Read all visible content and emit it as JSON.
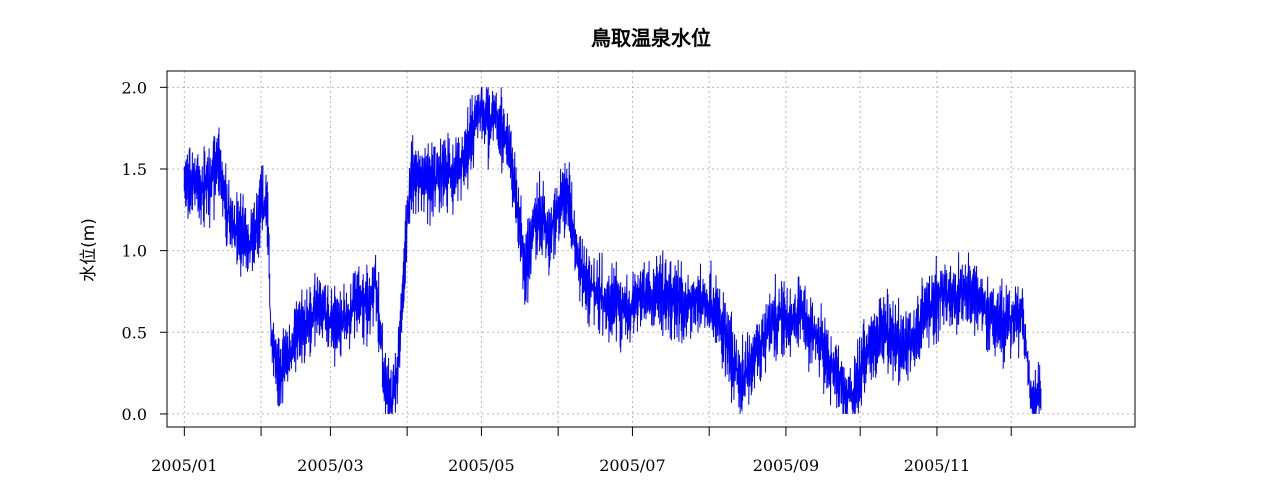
{
  "chart_data": {
    "type": "line",
    "title": "鳥取温泉水位",
    "xlabel": "",
    "ylabel": "水位(m)",
    "x_axis": {
      "type": "date",
      "range": [
        "2004-12-25",
        "2006-01-20"
      ],
      "ticks": [
        "2005-01-01",
        "2005-02-01",
        "2005-03-01",
        "2005-04-01",
        "2005-05-01",
        "2005-06-01",
        "2005-07-01",
        "2005-08-01",
        "2005-09-01",
        "2005-10-01",
        "2005-11-01",
        "2005-12-01"
      ],
      "tick_labels": [
        "2005/01",
        "",
        "2005/03",
        "",
        "2005/05",
        "",
        "2005/07",
        "",
        "2005/09",
        "",
        "2005/11",
        ""
      ]
    },
    "y_axis": {
      "range": [
        -0.08,
        2.1
      ],
      "ticks": [
        0.0,
        0.5,
        1.0,
        1.5,
        2.0
      ],
      "tick_labels": [
        "0.0",
        "0.5",
        "1.0",
        "1.5",
        "2.0"
      ]
    },
    "grid": true,
    "series": [
      {
        "color": "#0000ff",
        "points": [
          [
            "2005-01-01",
            1.4
          ],
          [
            "2005-01-05",
            1.45
          ],
          [
            "2005-01-08",
            1.38
          ],
          [
            "2005-01-12",
            1.42
          ],
          [
            "2005-01-15",
            1.55
          ],
          [
            "2005-01-18",
            1.25
          ],
          [
            "2005-01-21",
            1.15
          ],
          [
            "2005-01-25",
            1.1
          ],
          [
            "2005-01-28",
            1.05
          ],
          [
            "2005-01-31",
            1.2
          ],
          [
            "2005-02-03",
            1.3
          ],
          [
            "2005-02-04",
            1.1
          ],
          [
            "2005-02-05",
            0.45
          ],
          [
            "2005-02-08",
            0.25
          ],
          [
            "2005-02-12",
            0.35
          ],
          [
            "2005-02-16",
            0.5
          ],
          [
            "2005-02-20",
            0.55
          ],
          [
            "2005-02-24",
            0.65
          ],
          [
            "2005-02-28",
            0.6
          ],
          [
            "2005-03-04",
            0.55
          ],
          [
            "2005-03-08",
            0.6
          ],
          [
            "2005-03-12",
            0.7
          ],
          [
            "2005-03-16",
            0.65
          ],
          [
            "2005-03-19",
            0.8
          ],
          [
            "2005-03-21",
            0.55
          ],
          [
            "2005-03-23",
            0.15
          ],
          [
            "2005-03-26",
            0.05
          ],
          [
            "2005-03-29",
            0.4
          ],
          [
            "2005-04-01",
            1.2
          ],
          [
            "2005-04-03",
            1.5
          ],
          [
            "2005-04-07",
            1.45
          ],
          [
            "2005-04-11",
            1.4
          ],
          [
            "2005-04-15",
            1.5
          ],
          [
            "2005-04-19",
            1.45
          ],
          [
            "2005-04-23",
            1.55
          ],
          [
            "2005-04-26",
            1.65
          ],
          [
            "2005-04-29",
            1.8
          ],
          [
            "2005-05-01",
            1.9
          ],
          [
            "2005-05-04",
            1.75
          ],
          [
            "2005-05-07",
            1.85
          ],
          [
            "2005-05-10",
            1.7
          ],
          [
            "2005-05-13",
            1.55
          ],
          [
            "2005-05-16",
            1.2
          ],
          [
            "2005-05-19",
            0.85
          ],
          [
            "2005-05-22",
            1.2
          ],
          [
            "2005-05-25",
            1.25
          ],
          [
            "2005-05-28",
            1.05
          ],
          [
            "2005-05-31",
            1.2
          ],
          [
            "2005-06-03",
            1.35
          ],
          [
            "2005-06-06",
            1.25
          ],
          [
            "2005-06-09",
            0.9
          ],
          [
            "2005-06-13",
            0.8
          ],
          [
            "2005-06-17",
            0.75
          ],
          [
            "2005-06-21",
            0.65
          ],
          [
            "2005-06-25",
            0.7
          ],
          [
            "2005-06-29",
            0.6
          ],
          [
            "2005-07-03",
            0.75
          ],
          [
            "2005-07-08",
            0.7
          ],
          [
            "2005-07-13",
            0.75
          ],
          [
            "2005-07-18",
            0.7
          ],
          [
            "2005-07-23",
            0.65
          ],
          [
            "2005-07-28",
            0.7
          ],
          [
            "2005-08-02",
            0.65
          ],
          [
            "2005-08-06",
            0.55
          ],
          [
            "2005-08-10",
            0.35
          ],
          [
            "2005-08-14",
            0.2
          ],
          [
            "2005-08-18",
            0.3
          ],
          [
            "2005-08-22",
            0.45
          ],
          [
            "2005-08-26",
            0.55
          ],
          [
            "2005-08-30",
            0.6
          ],
          [
            "2005-09-03",
            0.55
          ],
          [
            "2005-09-07",
            0.65
          ],
          [
            "2005-09-11",
            0.5
          ],
          [
            "2005-09-15",
            0.45
          ],
          [
            "2005-09-19",
            0.3
          ],
          [
            "2005-09-23",
            0.2
          ],
          [
            "2005-09-26",
            0.1
          ],
          [
            "2005-09-29",
            0.15
          ],
          [
            "2005-10-03",
            0.35
          ],
          [
            "2005-10-07",
            0.45
          ],
          [
            "2005-10-11",
            0.5
          ],
          [
            "2005-10-15",
            0.45
          ],
          [
            "2005-10-19",
            0.4
          ],
          [
            "2005-10-23",
            0.5
          ],
          [
            "2005-10-27",
            0.6
          ],
          [
            "2005-10-31",
            0.7
          ],
          [
            "2005-11-04",
            0.75
          ],
          [
            "2005-11-08",
            0.7
          ],
          [
            "2005-11-12",
            0.75
          ],
          [
            "2005-11-16",
            0.7
          ],
          [
            "2005-11-20",
            0.65
          ],
          [
            "2005-11-24",
            0.6
          ],
          [
            "2005-11-28",
            0.55
          ],
          [
            "2005-12-02",
            0.6
          ],
          [
            "2005-12-05",
            0.65
          ],
          [
            "2005-12-07",
            0.4
          ],
          [
            "2005-12-09",
            0.1
          ],
          [
            "2005-12-11",
            0.05
          ],
          [
            "2005-12-13",
            0.15
          ]
        ]
      }
    ]
  }
}
